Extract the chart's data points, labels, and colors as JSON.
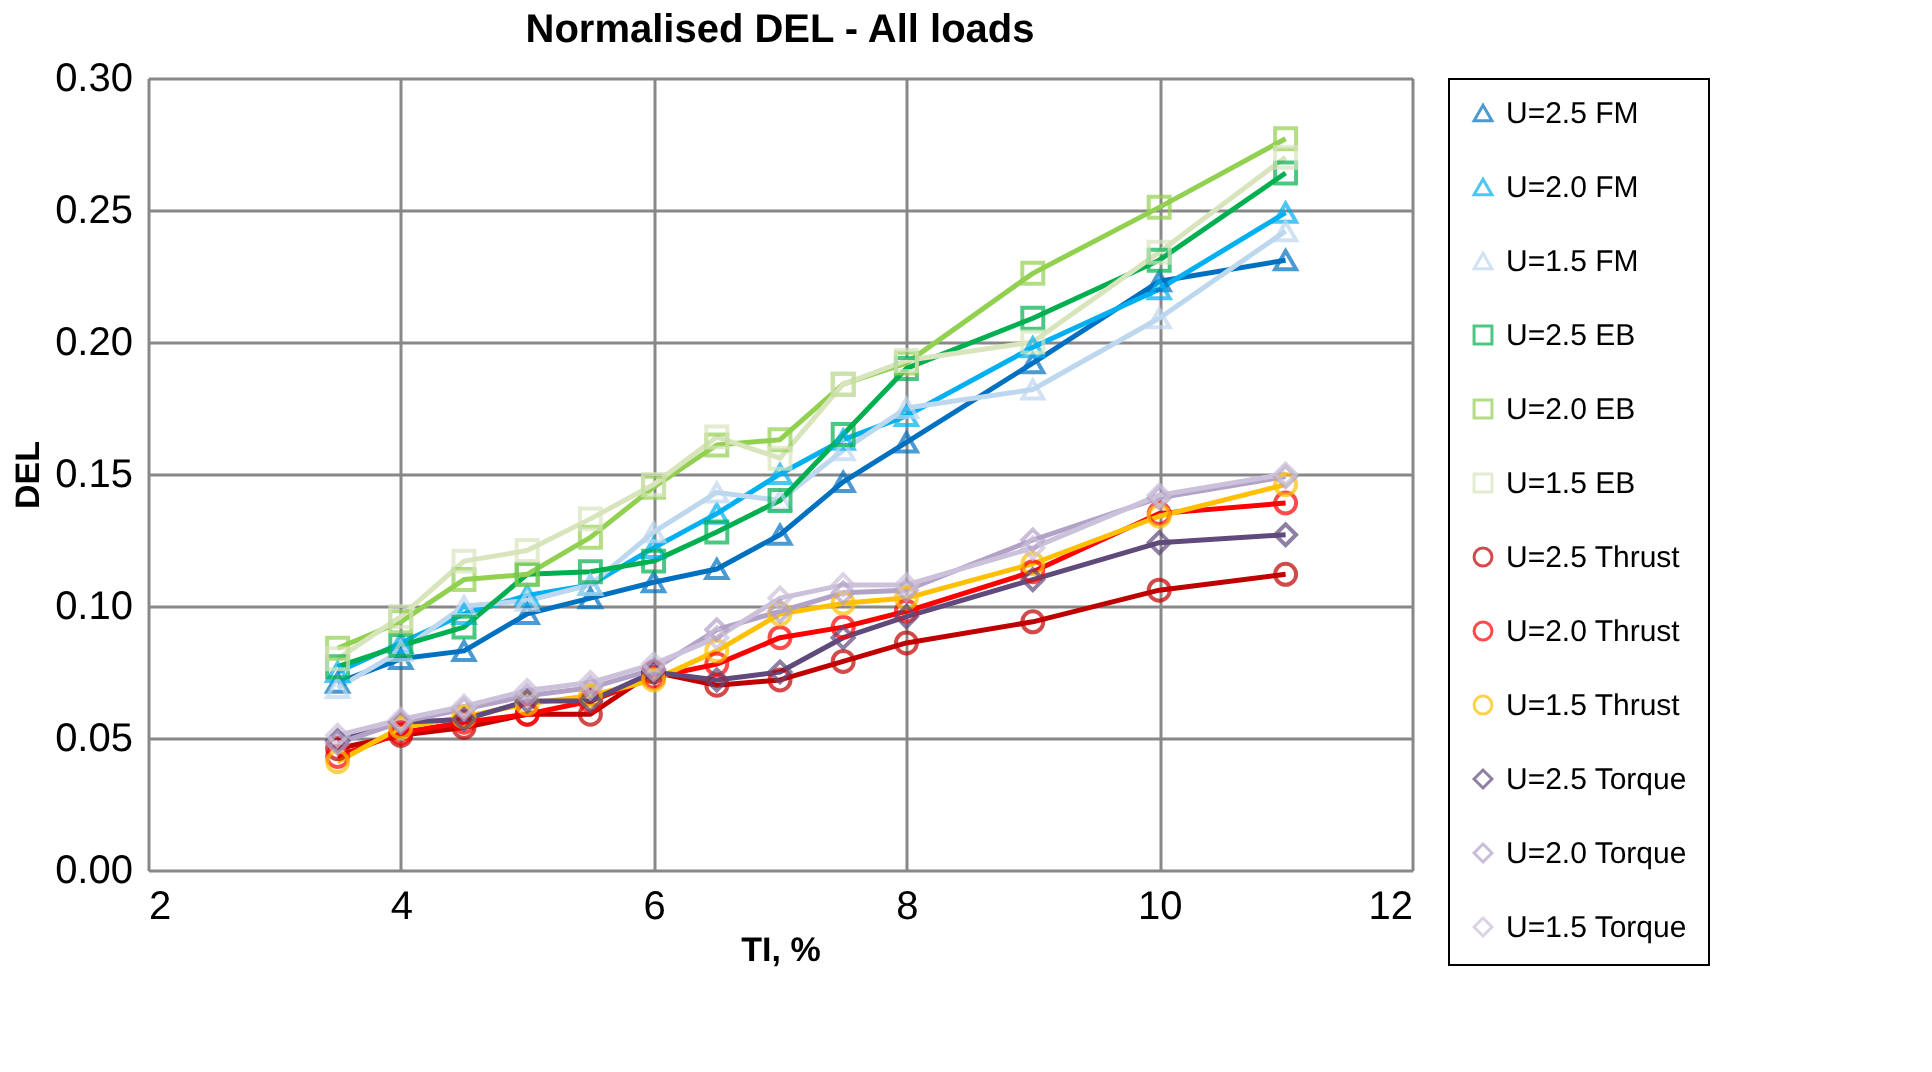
{
  "chart_data": {
    "type": "line",
    "title": "Normalised DEL - All loads",
    "xlabel": "TI, %",
    "ylabel": "DEL",
    "x": [
      3.5,
      4,
      4.5,
      5,
      5.5,
      6,
      6.5,
      7,
      7.5,
      8,
      9,
      10,
      11
    ],
    "xlim": [
      2,
      12
    ],
    "xticks": [
      2,
      4,
      6,
      8,
      10,
      12
    ],
    "ylim": [
      0,
      0.3
    ],
    "yticks": [
      {
        "value": 0,
        "label": "0.00"
      },
      0.05,
      {
        "value": 0.1,
        "label": "0.10"
      },
      0.15,
      {
        "value": 0.2,
        "label": "0.20"
      },
      0.25,
      {
        "value": 0.3,
        "label": "0.30"
      }
    ],
    "grid": true,
    "legend": "right",
    "line_style": "solid",
    "series": [
      {
        "name": "U=2.5 FM",
        "color": "#0070c0",
        "marker": "triangle",
        "values": [
          0.071,
          0.08,
          0.083,
          0.097,
          0.103,
          0.109,
          0.114,
          0.127,
          0.147,
          0.162,
          0.192,
          0.223,
          0.231
        ]
      },
      {
        "name": "U=2.0 FM",
        "color": "#00b0f0",
        "marker": "triangle",
        "values": [
          0.075,
          0.086,
          0.097,
          0.104,
          0.108,
          0.122,
          0.135,
          0.15,
          0.163,
          0.172,
          0.198,
          0.22,
          0.249
        ]
      },
      {
        "name": "U=1.5 FM",
        "color": "#bdd7ee",
        "marker": "triangle",
        "values": [
          0.069,
          0.083,
          0.1,
          0.102,
          0.108,
          0.128,
          0.143,
          0.14,
          0.159,
          0.175,
          0.182,
          0.209,
          0.242
        ]
      },
      {
        "name": "U=2.5 EB",
        "color": "#00b050",
        "marker": "square",
        "values": [
          0.077,
          0.085,
          0.092,
          0.112,
          0.113,
          0.117,
          0.128,
          0.14,
          0.165,
          0.19,
          0.209,
          0.231,
          0.264
        ]
      },
      {
        "name": "U=2.0 EB",
        "color": "#92d050",
        "marker": "square",
        "values": [
          0.084,
          0.094,
          0.11,
          0.112,
          0.126,
          0.145,
          0.161,
          0.163,
          0.184,
          0.192,
          0.226,
          0.251,
          0.277
        ]
      },
      {
        "name": "U=1.5 EB",
        "color": "#d8e4bc",
        "marker": "square",
        "values": [
          0.08,
          0.096,
          0.117,
          0.121,
          0.133,
          0.146,
          0.164,
          0.156,
          0.184,
          0.193,
          0.2,
          0.234,
          0.27
        ]
      },
      {
        "name": "U=2.5 Thrust",
        "color": "#c00000",
        "marker": "circle",
        "values": [
          0.046,
          0.051,
          0.054,
          0.059,
          0.059,
          0.075,
          0.07,
          0.072,
          0.079,
          0.086,
          0.094,
          0.106,
          0.112
        ]
      },
      {
        "name": "U=2.0 Thrust",
        "color": "#ff0000",
        "marker": "circle",
        "values": [
          0.043,
          0.052,
          0.056,
          0.059,
          0.064,
          0.073,
          0.078,
          0.088,
          0.092,
          0.098,
          0.113,
          0.135,
          0.139
        ]
      },
      {
        "name": "U=1.5 Thrust",
        "color": "#ffc000",
        "marker": "circle",
        "values": [
          0.041,
          0.054,
          0.058,
          0.063,
          0.066,
          0.072,
          0.083,
          0.097,
          0.101,
          0.103,
          0.116,
          0.134,
          0.146
        ]
      },
      {
        "name": "U=2.5 Torque",
        "color": "#604a7b",
        "marker": "diamond",
        "values": [
          0.049,
          0.056,
          0.057,
          0.064,
          0.064,
          0.075,
          0.072,
          0.075,
          0.088,
          0.096,
          0.11,
          0.124,
          0.127
        ]
      },
      {
        "name": "U=2.0 Torque",
        "color": "#b3a2c7",
        "marker": "diamond",
        "values": [
          0.048,
          0.056,
          0.061,
          0.066,
          0.069,
          0.076,
          0.091,
          0.098,
          0.105,
          0.106,
          0.125,
          0.141,
          0.149
        ]
      },
      {
        "name": "U=1.5 Torque",
        "color": "#ccc1da",
        "marker": "diamond",
        "values": [
          0.051,
          0.057,
          0.062,
          0.068,
          0.071,
          0.078,
          0.088,
          0.103,
          0.108,
          0.108,
          0.122,
          0.142,
          0.15
        ]
      }
    ]
  }
}
